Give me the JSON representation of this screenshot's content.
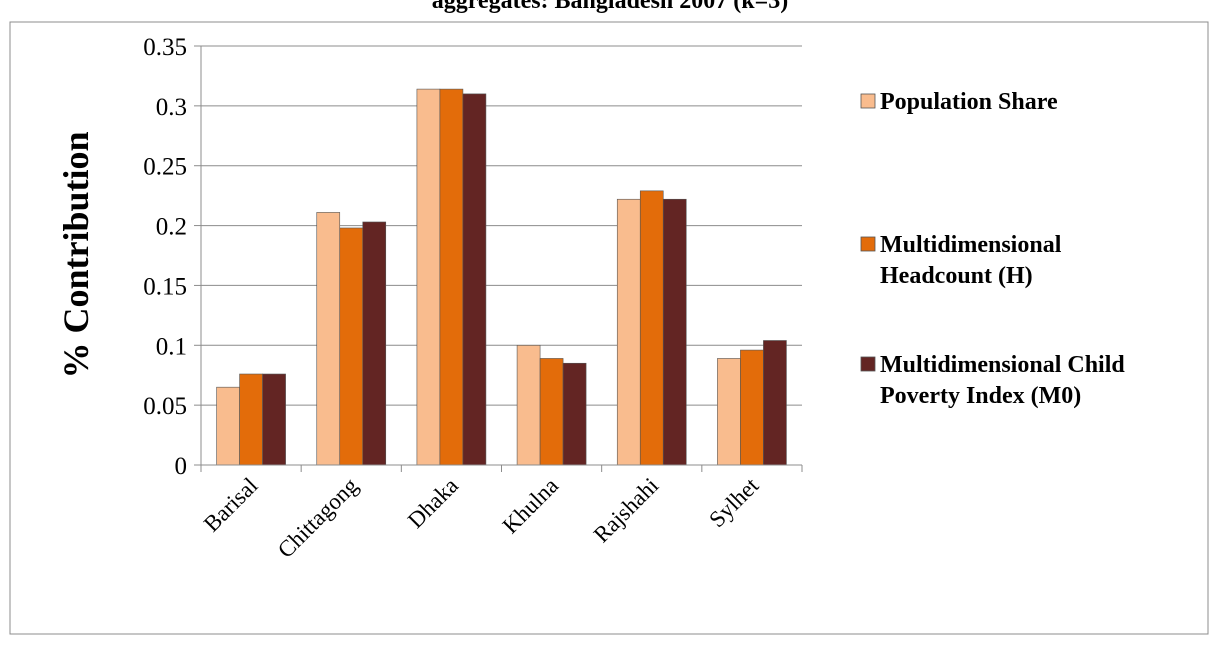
{
  "chart_data": {
    "type": "bar",
    "title": "aggregates: Bangladesh 2007 (k=3)",
    "ylabel": "% Contribution",
    "xlabel": "",
    "ylim": [
      0,
      0.35
    ],
    "yticks": [
      "0",
      "0.05",
      "0.1",
      "0.15",
      "0.2",
      "0.25",
      "0.3",
      "0.35"
    ],
    "grid": true,
    "legend_position": "right",
    "categories": [
      "Barisal",
      "Chittagong",
      "Dhaka",
      "Khulna",
      "Rajshahi",
      "Sylhet"
    ],
    "series": [
      {
        "name": "Population Share",
        "color": "#F9BC8E",
        "values": [
          0.065,
          0.211,
          0.314,
          0.1,
          0.222,
          0.089
        ]
      },
      {
        "name": "Multidimensional Headcount (H)",
        "color": "#E36C0A",
        "values": [
          0.076,
          0.198,
          0.314,
          0.089,
          0.229,
          0.096
        ]
      },
      {
        "name": "Multidimensional Child Poverty Index (M0)",
        "color": "#632523",
        "values": [
          0.076,
          0.203,
          0.31,
          0.085,
          0.222,
          0.104
        ]
      }
    ],
    "legend_lines": [
      [
        "Population Share"
      ],
      [
        "Multidimensional",
        "Headcount (H)"
      ],
      [
        "Multidimensional Child",
        "Poverty Index (M0)"
      ]
    ]
  }
}
